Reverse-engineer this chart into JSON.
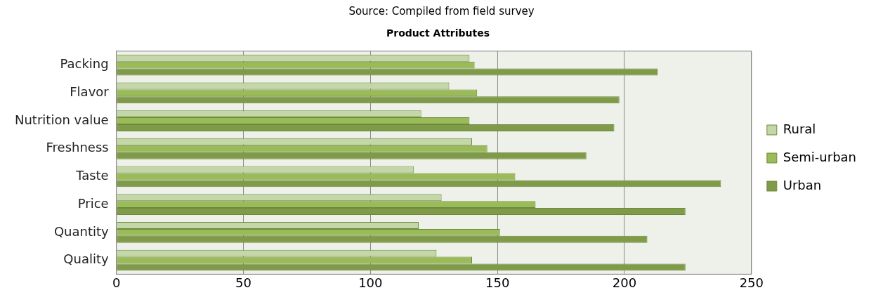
{
  "chart_data": {
    "type": "bar",
    "orientation": "horizontal",
    "title": "Product Attributes",
    "annotations": [
      "Source: Compiled from field survey"
    ],
    "categories": [
      "Packing",
      "Flavor",
      "Nutrition value",
      "Freshness",
      "Taste",
      "Price",
      "Quantity",
      "Quality"
    ],
    "series": [
      {
        "name": "Rural",
        "color": "#c4d7a8",
        "values": [
          139,
          131,
          120,
          140,
          117,
          128,
          119,
          126
        ]
      },
      {
        "name": "Semi-urban",
        "color": "#9bbb59",
        "values": [
          141,
          142,
          139,
          146,
          157,
          165,
          151,
          140
        ]
      },
      {
        "name": "Urban",
        "color": "#7f9a48",
        "values": [
          213,
          198,
          196,
          185,
          238,
          224,
          209,
          224
        ]
      }
    ],
    "xlim": [
      0,
      250
    ],
    "xticks": [
      0,
      50,
      100,
      150,
      200,
      250
    ],
    "grid": "x",
    "legend": "right"
  }
}
